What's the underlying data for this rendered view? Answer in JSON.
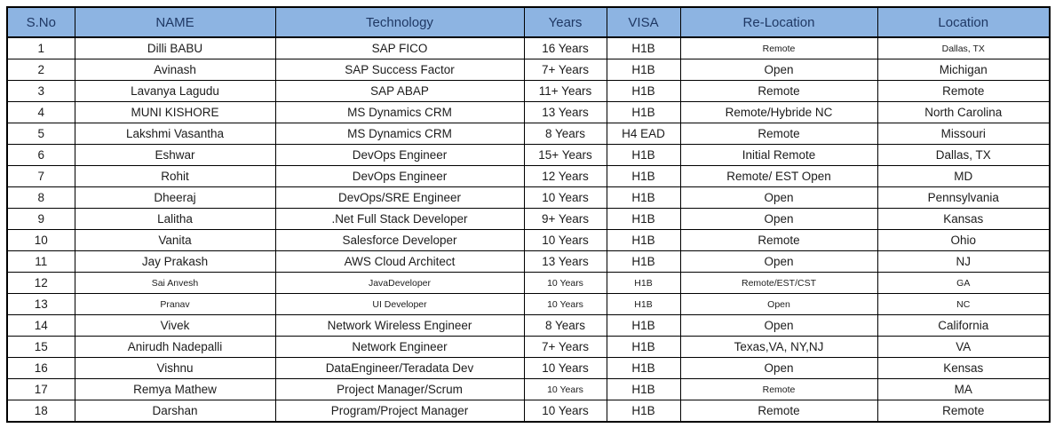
{
  "chart_data": {
    "type": "table",
    "title": "",
    "columns": [
      "S.No",
      "NAME",
      "Technology",
      "Years",
      "VISA",
      "Re-Location",
      "Location"
    ],
    "rows": [
      [
        "1",
        "Dilli BABU",
        "SAP FICO",
        "16 Years",
        "H1B",
        "Remote",
        "Dallas, TX"
      ],
      [
        "2",
        "Avinash",
        "SAP Success Factor",
        "7+ Years",
        "H1B",
        "Open",
        "Michigan"
      ],
      [
        "3",
        "Lavanya Lagudu",
        "SAP ABAP",
        "11+ Years",
        "H1B",
        "Remote",
        "Remote"
      ],
      [
        "4",
        "MUNI KISHORE",
        "MS Dynamics CRM",
        "13 Years",
        "H1B",
        "Remote/Hybride NC",
        "North Carolina"
      ],
      [
        "5",
        "Lakshmi Vasantha",
        "MS Dynamics CRM",
        "8 Years",
        "H4 EAD",
        "Remote",
        "Missouri"
      ],
      [
        "6",
        "Eshwar",
        "DevOps Engineer",
        "15+ Years",
        "H1B",
        "Initial Remote",
        "Dallas, TX"
      ],
      [
        "7",
        "Rohit",
        "DevOps Engineer",
        "12 Years",
        "H1B",
        "Remote/ EST Open",
        "MD"
      ],
      [
        "8",
        "Dheeraj",
        "DevOps/SRE Engineer",
        "10 Years",
        "H1B",
        "Open",
        "Pennsylvania"
      ],
      [
        "9",
        "Lalitha",
        ".Net Full Stack Developer",
        "9+ Years",
        "H1B",
        "Open",
        "Kansas"
      ],
      [
        "10",
        "Vanita",
        "Salesforce Developer",
        "10 Years",
        "H1B",
        "Remote",
        "Ohio"
      ],
      [
        "11",
        "Jay Prakash",
        "AWS Cloud Architect",
        "13 Years",
        "H1B",
        "Open",
        "NJ"
      ],
      [
        "12",
        "Sai Anvesh",
        "JavaDeveloper",
        "10 Years",
        "H1B",
        "Remote/EST/CST",
        "GA"
      ],
      [
        "13",
        "Pranav",
        "UI Developer",
        "10 Years",
        "H1B",
        "Open",
        "NC"
      ],
      [
        "14",
        "Vivek",
        "Network Wireless Engineer",
        "8 Years",
        "H1B",
        "Open",
        "California"
      ],
      [
        "15",
        "Anirudh Nadepalli",
        "Network Engineer",
        "7+ Years",
        "H1B",
        "Texas,VA, NY,NJ",
        "VA"
      ],
      [
        "16",
        "Vishnu",
        "DataEngineer/Teradata Dev",
        "10 Years",
        "H1B",
        "Open",
        "Kensas"
      ],
      [
        "17",
        "Remya Mathew",
        "Project Manager/Scrum",
        "10 Years",
        "H1B",
        "Remote",
        "MA"
      ],
      [
        "18",
        "Darshan",
        "Program/Project Manager",
        "10 Years",
        "H1B",
        "Remote",
        "Remote"
      ]
    ],
    "small_cells": {
      "0": [
        5,
        6
      ],
      "11": [
        1,
        2,
        3,
        4,
        5,
        6
      ],
      "12": [
        1,
        2,
        3,
        4,
        5,
        6
      ],
      "16": [
        3,
        5
      ]
    },
    "layout": {
      "legend": "none",
      "grid": "all-borders"
    },
    "colors": {
      "header_bg": "#8DB4E2",
      "header_text": "#1F3864",
      "border": "#000000",
      "cell_text": "#1c1c1c"
    }
  }
}
